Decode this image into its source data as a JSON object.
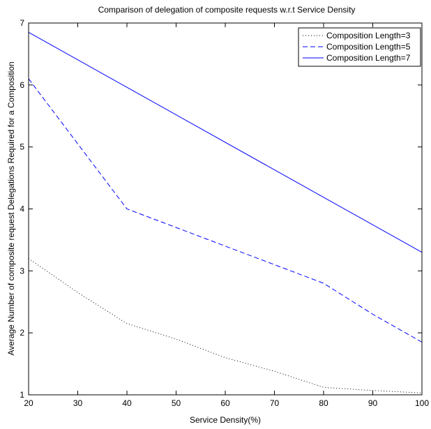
{
  "chart_data": {
    "type": "line",
    "title": "Comparison of delegation of composite requests w.r.t Service Density",
    "xlabel": "Service Density(%)",
    "ylabel": "Average Number of composite request Delegations Required for a Composition",
    "xlim": [
      20,
      100
    ],
    "ylim": [
      1,
      7
    ],
    "xticks": [
      20,
      30,
      40,
      50,
      60,
      70,
      80,
      90,
      100
    ],
    "yticks": [
      1,
      2,
      3,
      4,
      5,
      6,
      7
    ],
    "grid": false,
    "legend_position": "top-right",
    "series": [
      {
        "name": "Composition Length=3",
        "style": "dotted",
        "color": "#000000",
        "x": [
          20,
          30,
          40,
          50,
          60,
          70,
          80,
          90,
          100
        ],
        "y": [
          3.2,
          2.65,
          2.15,
          1.9,
          1.6,
          1.38,
          1.12,
          1.07,
          1.03
        ]
      },
      {
        "name": "Composition Length=5",
        "style": "dashed",
        "color": "#0000ff",
        "x": [
          20,
          30,
          40,
          50,
          60,
          70,
          80,
          90,
          100
        ],
        "y": [
          6.1,
          5.05,
          4.0,
          3.7,
          3.4,
          3.1,
          2.8,
          2.3,
          1.85
        ]
      },
      {
        "name": "Composition Length=7",
        "style": "solid",
        "color": "#0000ff",
        "x": [
          20,
          100
        ],
        "y": [
          6.85,
          3.3
        ]
      }
    ]
  }
}
